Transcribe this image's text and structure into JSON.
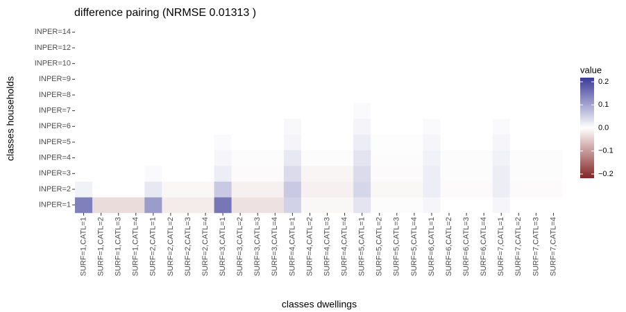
{
  "chart_data": {
    "type": "heatmap",
    "title": "difference pairing (NRMSE  0.01313 )",
    "x_label": "classes dwellings",
    "y_label": "classes households",
    "x_categories": [
      "SURF=1,CATL=1",
      "SURF=1,CATL=2",
      "SURF=1,CATL=3",
      "SURF=1,CATL=4",
      "SURF=2,CATL=1",
      "SURF=2,CATL=2",
      "SURF=2,CATL=3",
      "SURF=2,CATL=4",
      "SURF=3,CATL=1",
      "SURF=3,CATL=2",
      "SURF=3,CATL=3",
      "SURF=3,CATL=4",
      "SURF=4,CATL=1",
      "SURF=4,CATL=2",
      "SURF=4,CATL=3",
      "SURF=4,CATL=4",
      "SURF=5,CATL=1",
      "SURF=5,CATL=2",
      "SURF=5,CATL=3",
      "SURF=5,CATL=4",
      "SURF=6,CATL=1",
      "SURF=6,CATL=2",
      "SURF=6,CATL=3",
      "SURF=6,CATL=4",
      "SURF=7,CATL=1",
      "SURF=7,CATL=2",
      "SURF=7,CATL=3",
      "SURF=7,CATL=4"
    ],
    "y_categories": [
      "INPER=1",
      "INPER=2",
      "INPER=3",
      "INPER=4",
      "INPER=5",
      "INPER=6",
      "INPER=7",
      "INPER=8",
      "INPER=9",
      "INPER=10",
      "INPER=12",
      "INPER=14"
    ],
    "values": [
      [
        0.14,
        -0.035,
        -0.035,
        -0.035,
        0.11,
        -0.02,
        -0.02,
        -0.02,
        0.15,
        -0.03,
        -0.03,
        -0.03,
        0.05,
        -0.008,
        -0.008,
        -0.008,
        0.03,
        -0.003,
        -0.003,
        -0.003,
        0.01,
        0,
        0,
        0,
        0.01,
        0,
        0,
        0
      ],
      [
        0.015,
        0,
        0,
        0,
        0.025,
        -0.008,
        -0.008,
        -0.008,
        0.06,
        -0.015,
        -0.015,
        -0.015,
        0.06,
        -0.015,
        -0.015,
        -0.015,
        0.045,
        -0.008,
        -0.008,
        -0.008,
        0.02,
        -0.005,
        -0.005,
        -0.005,
        0.02,
        -0.005,
        -0.005,
        -0.005
      ],
      [
        0,
        0,
        0,
        0,
        0.005,
        0,
        0,
        0,
        0.02,
        -0.005,
        -0.005,
        -0.005,
        0.04,
        -0.01,
        -0.01,
        -0.01,
        0.04,
        -0.005,
        -0.005,
        -0.005,
        0.02,
        -0.003,
        -0.003,
        -0.003,
        0.02,
        -0.003,
        -0.003,
        -0.003
      ],
      [
        0,
        0,
        0,
        0,
        0,
        0,
        0,
        0,
        0.01,
        -0.003,
        -0.003,
        -0.003,
        0.025,
        -0.003,
        -0.003,
        -0.003,
        0.03,
        -0.003,
        -0.003,
        -0.003,
        0.015,
        -0.003,
        -0.003,
        -0.003,
        0.015,
        -0.003,
        -0.003,
        -0.003
      ],
      [
        0,
        0,
        0,
        0,
        0,
        0,
        0,
        0,
        0.005,
        0,
        0,
        0,
        0.012,
        0,
        0,
        0,
        0.02,
        -0.002,
        -0.002,
        -0.002,
        0.01,
        0,
        0,
        0,
        0.01,
        0,
        0,
        0
      ],
      [
        0,
        0,
        0,
        0,
        0,
        0,
        0,
        0,
        0,
        0,
        0,
        0,
        0.008,
        0,
        0,
        0,
        0.012,
        0,
        0,
        0,
        0.006,
        0,
        0,
        0,
        0.006,
        0,
        0,
        0
      ],
      [
        0,
        0,
        0,
        0,
        0,
        0,
        0,
        0,
        0,
        0,
        0,
        0,
        0,
        0,
        0,
        0,
        0.005,
        0,
        0,
        0,
        0,
        0,
        0,
        0,
        0,
        0,
        0,
        0
      ],
      [
        0,
        0,
        0,
        0,
        0,
        0,
        0,
        0,
        0,
        0,
        0,
        0,
        0,
        0,
        0,
        0,
        0,
        0,
        0,
        0,
        0,
        0,
        0,
        0,
        0,
        0,
        0,
        0
      ],
      [
        0,
        0,
        0,
        0,
        0,
        0,
        0,
        0,
        0,
        0,
        0,
        0,
        0,
        0,
        0,
        0,
        0,
        0,
        0,
        0,
        0,
        0,
        0,
        0,
        0,
        0,
        0,
        0
      ],
      [
        0,
        0,
        0,
        0,
        0,
        0,
        0,
        0,
        0,
        0,
        0,
        0,
        0,
        0,
        0,
        0,
        0,
        0,
        0,
        0,
        0,
        0,
        0,
        0,
        0,
        0,
        0,
        0
      ],
      [
        0,
        0,
        0,
        0,
        0,
        0,
        0,
        0,
        0,
        0,
        0,
        0,
        0,
        0,
        0,
        0,
        0,
        0,
        0,
        0,
        0,
        0,
        0,
        0,
        0,
        0,
        0,
        0
      ],
      [
        0,
        0,
        0,
        0,
        0,
        0,
        0,
        0,
        0,
        0,
        0,
        0,
        0,
        0,
        0,
        0,
        0,
        0,
        0,
        0,
        0,
        0,
        0,
        0,
        0,
        0,
        0,
        0
      ]
    ],
    "legend_title": "value",
    "zlim": [
      -0.218,
      0.218
    ],
    "zticks": [
      {
        "value": 0.2,
        "label": "0.2"
      },
      {
        "value": 0.1,
        "label": "0.1"
      },
      {
        "value": 0,
        "label": "0.0"
      },
      {
        "value": -0.1,
        "label": "−0.1"
      },
      {
        "value": -0.2,
        "label": "−0.2"
      }
    ],
    "low_color": "#832424",
    "mid_color": "#ffffff",
    "high_color": "#3a3a98"
  }
}
